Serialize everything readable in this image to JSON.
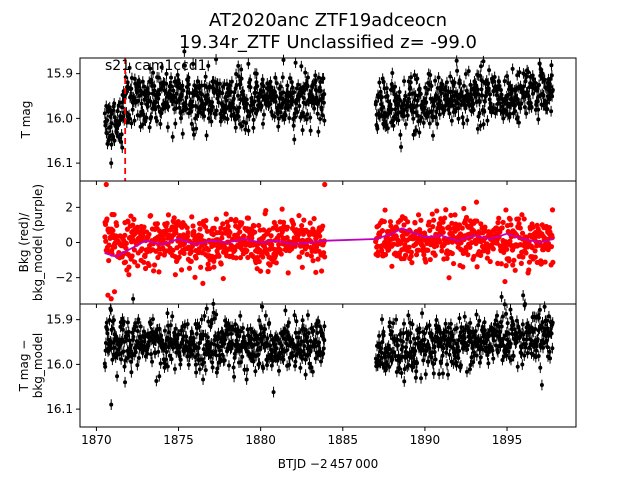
{
  "title_line1": "AT2020anc  ZTF19adceocn",
  "title_line2": "19.34r_ZTF Unclassified z= -99.0",
  "xlabel": "BTJD −2 457 000",
  "xlim": [
    1869.0,
    1899.2
  ],
  "xticks": [
    1870,
    1875,
    1880,
    1885,
    1890,
    1895
  ],
  "xtick_labels": [
    "1870",
    "1875",
    "1880",
    "1885",
    "1890",
    "1895"
  ],
  "annotation": "s21 cam1ccd1",
  "colors": {
    "flux": "#000000",
    "bkg": "#ff0000",
    "bkg_model": "#bf00bf",
    "marker_line": "#ff0000"
  },
  "chart_data": [
    {
      "type": "scatter",
      "panel": "top",
      "ylabel": "T mag",
      "ylim": [
        16.14,
        15.865
      ],
      "inverted_y": true,
      "yticks": [
        15.9,
        16.0,
        16.1
      ],
      "ytick_labels": [
        "15.9",
        "16.0",
        "16.1"
      ],
      "vertical_marker_x": 1871.75,
      "segments": [
        {
          "x_start": 1870.5,
          "x_end": 1883.9,
          "mean": 15.955,
          "spread": 0.03,
          "early_dip": [
            1870.5,
            1871.6,
            16.02
          ]
        },
        {
          "x_start": 1887.0,
          "x_end": 1897.8,
          "mean_start": 15.975,
          "mean_end": 15.935,
          "spread": 0.03
        }
      ],
      "outliers": [
        {
          "x": 1870.9,
          "y": 16.1
        }
      ],
      "error_bar": 0.012
    },
    {
      "type": "scatter",
      "panel": "middle",
      "ylabel": "Bkg (red)/\nbkg_model (purple)",
      "ylim": [
        -3.5,
        3.5
      ],
      "yticks": [
        -2,
        0,
        2
      ],
      "ytick_labels": [
        "−2",
        "0",
        "2"
      ],
      "segments": [
        {
          "x_start": 1870.5,
          "x_end": 1883.9,
          "mean": 0.0,
          "spread": 0.7
        },
        {
          "x_start": 1887.0,
          "x_end": 1897.8,
          "mean": 0.1,
          "spread": 0.7
        }
      ],
      "outliers": [
        {
          "x": 1870.6,
          "y": 3.3
        },
        {
          "x": 1883.9,
          "y": 3.3
        },
        {
          "x": 1870.7,
          "y": -3.0
        },
        {
          "x": 1870.9,
          "y": -3.2
        },
        {
          "x": 1871.1,
          "y": -2.8
        }
      ],
      "model_series": [
        [
          1870.5,
          -0.6
        ],
        [
          1871.2,
          -0.8
        ],
        [
          1872.0,
          -0.4
        ],
        [
          1873.0,
          0.1
        ],
        [
          1874.0,
          -0.1
        ],
        [
          1875.0,
          0.2
        ],
        [
          1876.0,
          -0.1
        ],
        [
          1877.0,
          0.1
        ],
        [
          1878.0,
          0.0
        ],
        [
          1879.0,
          0.2
        ],
        [
          1880.0,
          0.0
        ],
        [
          1881.0,
          0.1
        ],
        [
          1882.0,
          -0.1
        ],
        [
          1883.0,
          0.0
        ],
        [
          1884.0,
          0.1
        ],
        [
          1887.0,
          0.2
        ],
        [
          1888.0,
          0.5
        ],
        [
          1888.6,
          0.8
        ],
        [
          1889.2,
          0.6
        ],
        [
          1890.0,
          0.3
        ],
        [
          1891.0,
          0.4
        ],
        [
          1892.0,
          0.1
        ],
        [
          1893.0,
          0.4
        ],
        [
          1894.0,
          0.2
        ],
        [
          1895.0,
          0.5
        ],
        [
          1896.0,
          0.2
        ],
        [
          1897.0,
          0.0
        ],
        [
          1897.8,
          0.2
        ]
      ]
    },
    {
      "type": "scatter",
      "panel": "bottom",
      "ylabel": "T mag −\nbkg_model",
      "ylim": [
        16.14,
        15.865
      ],
      "inverted_y": true,
      "yticks": [
        15.9,
        16.0,
        16.1
      ],
      "ytick_labels": [
        "15.9",
        "16.0",
        "16.1"
      ],
      "segments": [
        {
          "x_start": 1870.5,
          "x_end": 1883.9,
          "mean": 15.955,
          "spread": 0.03
        },
        {
          "x_start": 1887.0,
          "x_end": 1897.8,
          "mean_start": 15.97,
          "mean_end": 15.93,
          "spread": 0.03
        }
      ],
      "outliers": [
        {
          "x": 1870.9,
          "y": 16.09
        }
      ],
      "error_bar": 0.012
    }
  ]
}
